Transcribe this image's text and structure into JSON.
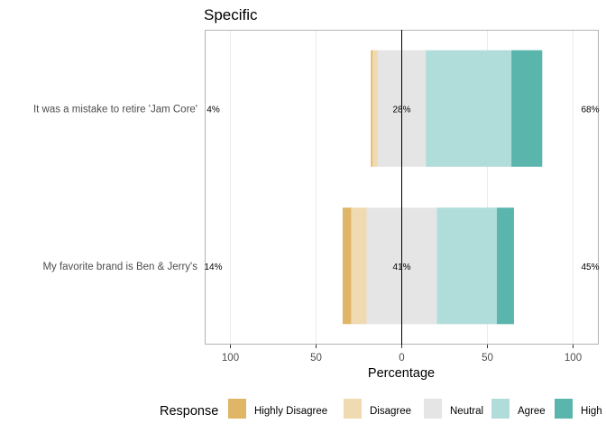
{
  "chart_data": {
    "type": "bar",
    "subtype": "diverging-stacked-likert",
    "title": "Specific",
    "xlabel": "Percentage",
    "ylabel": "",
    "xlim": [
      -115,
      115
    ],
    "xticks": [
      -100,
      -50,
      0,
      50,
      100
    ],
    "xtick_labels": [
      "100",
      "50",
      "0",
      "50",
      "100"
    ],
    "grid": true,
    "legend_position": "bottom",
    "legend_title": "Response",
    "responses": [
      "Highly Disagree",
      "Disagree",
      "Neutral",
      "Agree",
      "Highly Agree"
    ],
    "legend_labels": [
      "Highly Disagree",
      "Disagree",
      "Neutral",
      "Agree",
      "High"
    ],
    "colors": [
      "#DFB567",
      "#EFDAB2",
      "#E5E5E5",
      "#B0DDD9",
      "#5AB5AC"
    ],
    "items": [
      {
        "label": "It was a mistake to retire 'Jam Core'",
        "values": [
          1,
          3,
          28,
          50,
          18
        ],
        "low_pct": "4%",
        "neutral_pct": "28%",
        "high_pct": "68%"
      },
      {
        "label": "My favorite brand is Ben & Jerry's",
        "values": [
          5,
          9,
          41,
          35,
          10
        ],
        "low_pct": "14%",
        "neutral_pct": "41%",
        "high_pct": "45%"
      }
    ]
  }
}
